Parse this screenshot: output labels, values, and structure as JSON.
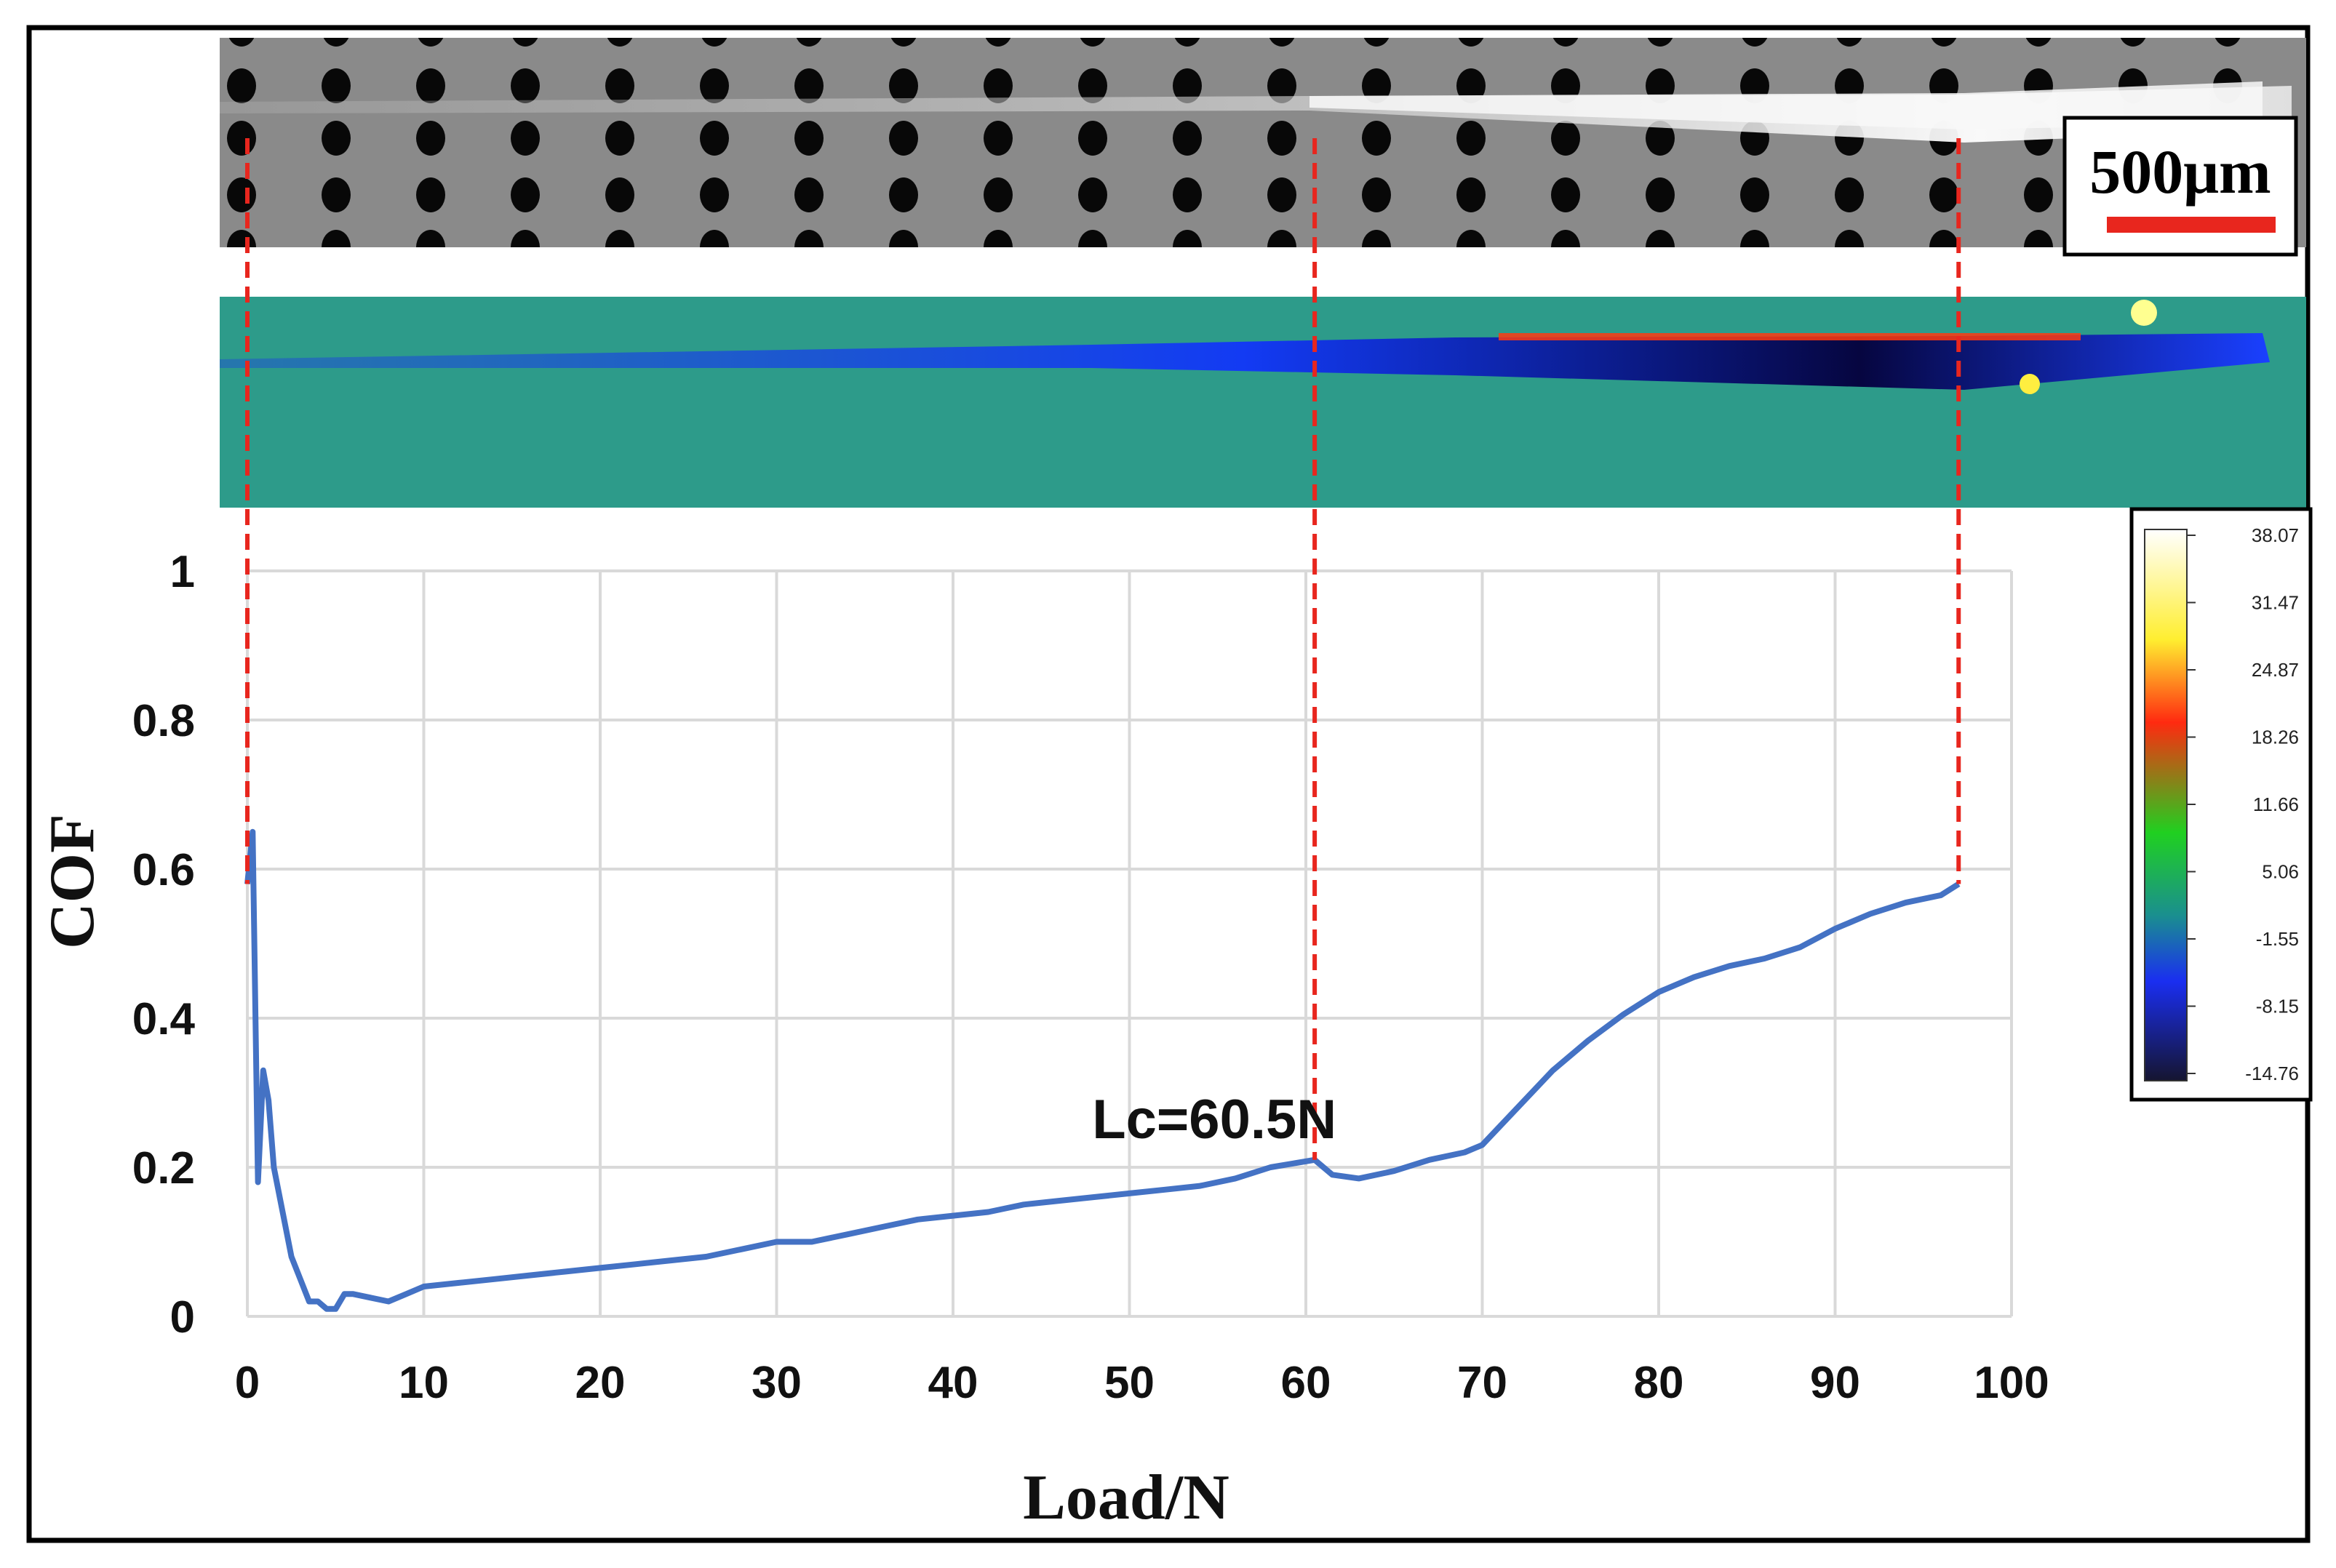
{
  "chart_data": {
    "type": "line",
    "xlabel": "Load/N",
    "ylabel": "COF",
    "xlim": [
      0,
      100
    ],
    "ylim": [
      0,
      1
    ],
    "x_ticks": [
      "0",
      "10",
      "20",
      "30",
      "40",
      "50",
      "60",
      "70",
      "80",
      "90",
      "100"
    ],
    "y_ticks": [
      "0",
      "0.2",
      "0.4",
      "0.6",
      "0.8",
      "1"
    ],
    "grid": true,
    "line_color": "#4472c4",
    "annotation": {
      "text": "Lc=60.5N",
      "x": 60.5,
      "y": 0.21
    },
    "guide_lines_x": [
      0,
      60.5,
      97
    ],
    "series": [
      {
        "x": [
          0,
          0.3,
          0.6,
          0.9,
          1.2,
          1.5,
          2,
          2.5,
          3,
          3.5,
          4,
          4.5,
          5,
          5.5,
          6,
          7,
          8,
          9,
          10,
          12,
          14,
          16,
          18,
          20,
          22,
          24,
          26,
          28,
          30,
          32,
          34,
          36,
          38,
          40,
          42,
          44,
          46,
          48,
          50,
          52,
          54,
          56,
          58,
          60.5,
          61.5,
          63,
          65,
          67,
          69,
          70,
          72,
          74,
          76,
          78,
          80,
          82,
          84,
          86,
          88,
          90,
          92,
          94,
          96,
          97
        ],
        "y": [
          0.58,
          0.65,
          0.18,
          0.33,
          0.29,
          0.2,
          0.14,
          0.08,
          0.05,
          0.02,
          0.02,
          0.01,
          0.01,
          0.03,
          0.03,
          0.025,
          0.02,
          0.03,
          0.04,
          0.045,
          0.05,
          0.055,
          0.06,
          0.065,
          0.07,
          0.075,
          0.08,
          0.09,
          0.1,
          0.1,
          0.11,
          0.12,
          0.13,
          0.135,
          0.14,
          0.15,
          0.155,
          0.16,
          0.165,
          0.17,
          0.175,
          0.185,
          0.2,
          0.21,
          0.19,
          0.185,
          0.195,
          0.21,
          0.22,
          0.23,
          0.28,
          0.33,
          0.37,
          0.405,
          0.435,
          0.455,
          0.47,
          0.48,
          0.495,
          0.52,
          0.54,
          0.555,
          0.565,
          0.58
        ]
      }
    ]
  },
  "scale_bar": {
    "label": "500μm",
    "color": "#e8261e"
  },
  "colorbar": {
    "labels": [
      "38.07",
      "31.47",
      "24.87",
      "18.26",
      "11.66",
      "5.06",
      "-1.55",
      "-8.15",
      "-14.76"
    ]
  }
}
